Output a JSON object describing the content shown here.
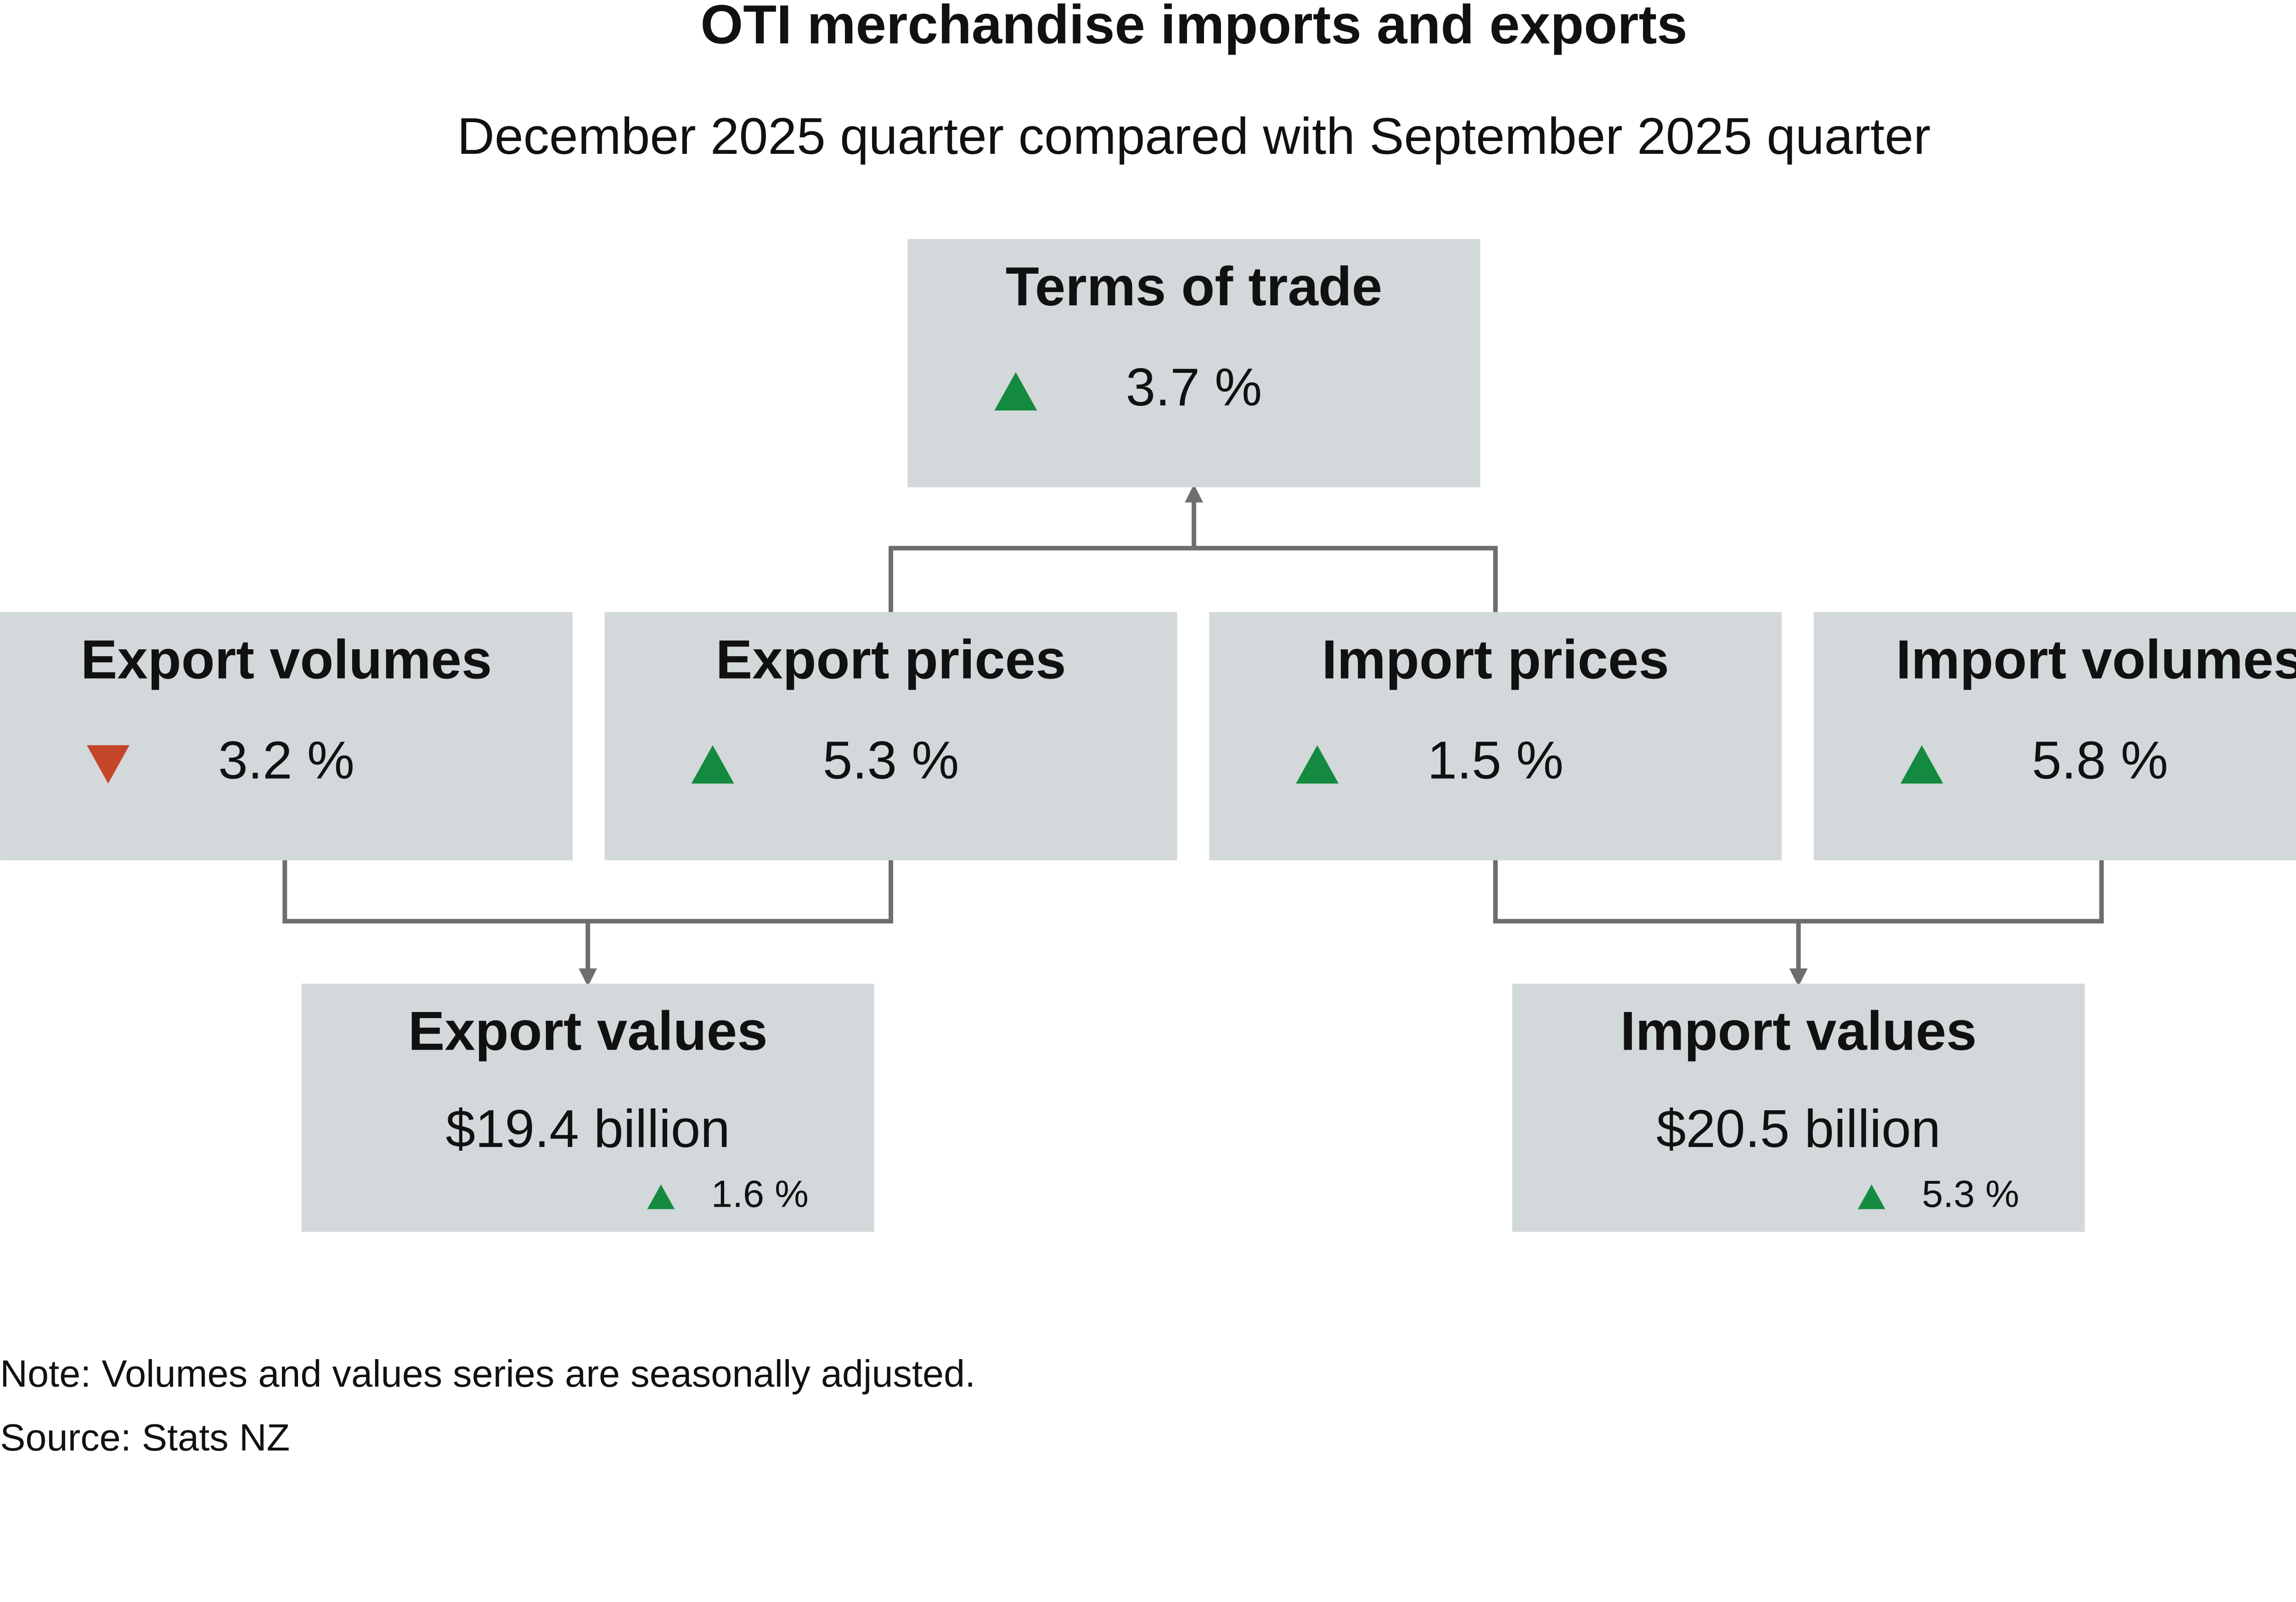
{
  "header": {
    "title": "OTI merchandise imports and exports",
    "subtitle": "December 2025 quarter compared with September 2025 quarter"
  },
  "colors": {
    "box": "#d3d8da",
    "up": "#138a3f",
    "down": "#c5452b"
  },
  "nodes": [
    {
      "label": "Terms of trade",
      "value": "3.7 %",
      "direction": "up"
    },
    {
      "label": "Export volumes",
      "value": "3.2 %",
      "direction": "down"
    },
    {
      "label": "Export prices",
      "value": "5.3 %",
      "direction": "up"
    },
    {
      "label": "Import prices",
      "value": "1.5 %",
      "direction": "up"
    },
    {
      "label": "Import volumes",
      "value": "5.8 %",
      "direction": "up"
    },
    {
      "label": "Export values",
      "value": "$19.4 billion",
      "change": "1.6 %",
      "direction": "up"
    },
    {
      "label": "Import values",
      "value": "$20.5 billion",
      "change": "5.3 %",
      "direction": "up"
    }
  ],
  "footer": {
    "note": "Note: Volumes and values series are seasonally adjusted.",
    "source": "Source: Stats NZ"
  }
}
